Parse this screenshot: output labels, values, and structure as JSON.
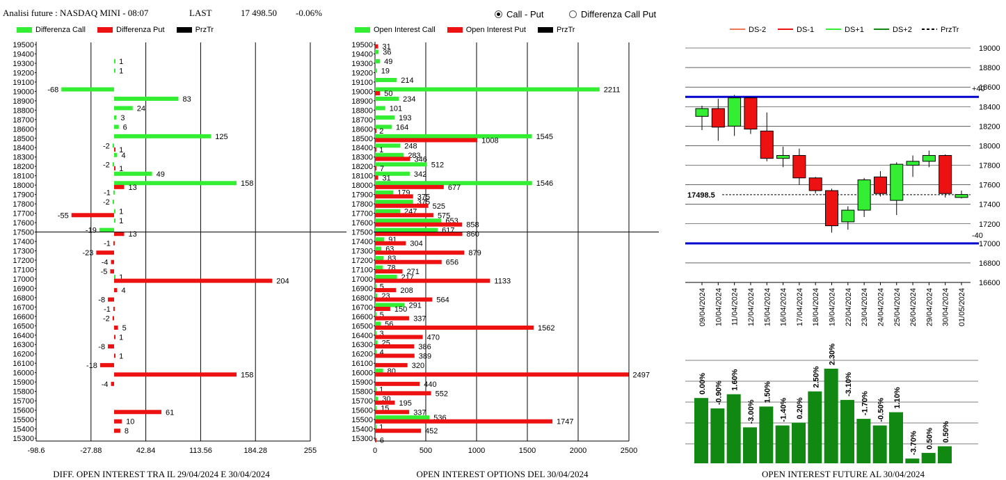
{
  "header": {
    "title": "Analisi future : NASDAQ MINI - 08:07",
    "last_label": "LAST",
    "last_value": "17 498.50",
    "change": "-0.06%"
  },
  "radio": {
    "options": [
      {
        "label": "Call - Put",
        "checked": true
      },
      {
        "label": "Differenza Call Put",
        "checked": false
      }
    ]
  },
  "colors": {
    "green": "#33ee33",
    "red": "#ee1111",
    "dark_green": "#118811",
    "blue": "#0000cc"
  },
  "chart_data": [
    {
      "type": "bar",
      "orientation": "horizontal",
      "caption": "DIFF. OPEN INTEREST TRA IL 29/04/2024 E 30/04/2024",
      "legend": [
        "Differenza Call",
        "Differenza Put",
        "PrzTr"
      ],
      "xticks": [
        "-98.6",
        "-27.88",
        "42.84",
        "113.56",
        "184.28",
        "255"
      ],
      "xlim": [
        -98.6,
        255
      ],
      "strikes": [
        19500,
        19400,
        19300,
        19200,
        19100,
        19000,
        18900,
        18800,
        18700,
        18600,
        18500,
        18400,
        18300,
        18200,
        18100,
        18000,
        17900,
        17800,
        17700,
        17600,
        17500,
        17400,
        17300,
        17200,
        17100,
        17000,
        16900,
        16800,
        16700,
        16600,
        16500,
        16400,
        16300,
        16200,
        16100,
        16000,
        15900,
        15800,
        15700,
        15600,
        15500,
        15400,
        15300
      ],
      "call": [
        null,
        null,
        1,
        1,
        null,
        -68,
        83,
        24,
        3,
        6,
        125,
        -2,
        4,
        -2,
        49,
        158,
        -1,
        -2,
        1,
        1,
        -19,
        null,
        null,
        null,
        null,
        1,
        null,
        null,
        null,
        null,
        null,
        null,
        null,
        null,
        null,
        null,
        null,
        null,
        null,
        null,
        null,
        null,
        null
      ],
      "put": [
        null,
        null,
        null,
        null,
        null,
        null,
        null,
        null,
        null,
        null,
        null,
        1,
        null,
        1,
        null,
        13,
        null,
        null,
        -55,
        null,
        13,
        -1,
        -23,
        -4,
        -5,
        204,
        4,
        -8,
        -1,
        -2,
        5,
        1,
        -8,
        1,
        -18,
        158,
        -4,
        null,
        null,
        61,
        10,
        8,
        null
      ],
      "prztr": 17500
    },
    {
      "type": "bar",
      "orientation": "horizontal",
      "caption": "OPEN INTEREST OPTIONS DEL 30/04/2024",
      "legend": [
        "Open Interest Call",
        "Open Interest Put",
        "PrzTr"
      ],
      "xticks": [
        "0",
        "500",
        "1000",
        "1500",
        "2000",
        "2500"
      ],
      "xlim": [
        0,
        2500
      ],
      "strikes": [
        19500,
        19400,
        19300,
        19200,
        19100,
        19000,
        18900,
        18800,
        18700,
        18600,
        18500,
        18400,
        18300,
        18200,
        18100,
        18000,
        17900,
        17800,
        17700,
        17600,
        17500,
        17400,
        17300,
        17200,
        17100,
        17000,
        16900,
        16800,
        16700,
        16600,
        16500,
        16400,
        16300,
        16200,
        16100,
        16000,
        15900,
        15800,
        15700,
        15600,
        15500,
        15400,
        15300
      ],
      "call": [
        null,
        36,
        49,
        19,
        214,
        2211,
        234,
        101,
        193,
        164,
        1545,
        248,
        283,
        512,
        342,
        1546,
        179,
        375,
        247,
        653,
        617,
        91,
        63,
        83,
        78,
        217,
        5,
        23,
        291,
        5,
        56,
        3,
        25,
        4,
        null,
        80,
        null,
        1,
        30,
        15,
        536,
        1,
        null
      ],
      "put": [
        31,
        null,
        null,
        null,
        null,
        50,
        null,
        null,
        null,
        2,
        1008,
        1,
        346,
        7,
        31,
        677,
        375,
        525,
        575,
        858,
        860,
        304,
        879,
        656,
        271,
        1133,
        208,
        564,
        150,
        337,
        1562,
        470,
        386,
        389,
        320,
        2497,
        440,
        552,
        195,
        337,
        1747,
        452,
        6
      ],
      "prztr": 17500
    },
    {
      "type": "candlestick",
      "legend": [
        "DS-2",
        "DS-1",
        "DS+1",
        "DS+2",
        "PrzTr"
      ],
      "yticks": [
        "19000",
        "18800",
        "18600",
        "18400",
        "18200",
        "18000",
        "17800",
        "17600",
        "17400",
        "17200",
        "17000",
        "16800",
        "16600"
      ],
      "ylim": [
        16600,
        19000
      ],
      "dates": [
        "09/04/2024",
        "10/04/2024",
        "11/04/2024",
        "12/04/2024",
        "15/04/2024",
        "16/04/2024",
        "17/04/2024",
        "18/04/2024",
        "19/04/2024",
        "22/04/2024",
        "23/04/2024",
        "24/04/2024",
        "25/04/2024",
        "26/04/2024",
        "29/04/2024",
        "30/04/2024",
        "01/05/2024"
      ],
      "candles": [
        {
          "o": 18300,
          "h": 18410,
          "l": 18160,
          "c": 18380
        },
        {
          "o": 18380,
          "h": 18480,
          "l": 18050,
          "c": 18190
        },
        {
          "o": 18200,
          "h": 18520,
          "l": 18100,
          "c": 18490
        },
        {
          "o": 18490,
          "h": 18500,
          "l": 18120,
          "c": 18170
        },
        {
          "o": 18150,
          "h": 18340,
          "l": 17840,
          "c": 17870
        },
        {
          "o": 17870,
          "h": 17990,
          "l": 17780,
          "c": 17900
        },
        {
          "o": 17900,
          "h": 17970,
          "l": 17600,
          "c": 17670
        },
        {
          "o": 17670,
          "h": 17680,
          "l": 17510,
          "c": 17540
        },
        {
          "o": 17540,
          "h": 17560,
          "l": 17110,
          "c": 17180
        },
        {
          "o": 17220,
          "h": 17380,
          "l": 17140,
          "c": 17340
        },
        {
          "o": 17340,
          "h": 17670,
          "l": 17270,
          "c": 17650
        },
        {
          "o": 17680,
          "h": 17740,
          "l": 17480,
          "c": 17510
        },
        {
          "o": 17440,
          "h": 17830,
          "l": 17290,
          "c": 17810
        },
        {
          "o": 17800,
          "h": 17900,
          "l": 17680,
          "c": 17840
        },
        {
          "o": 17840,
          "h": 17950,
          "l": 17780,
          "c": 17900
        },
        {
          "o": 17900,
          "h": 17910,
          "l": 17470,
          "c": 17510
        },
        {
          "o": 17470,
          "h": 17540,
          "l": 17460,
          "c": 17500
        }
      ],
      "upper_level": 18500,
      "lower_level": 17000,
      "upper_label": "+40",
      "lower_label": "-40",
      "price_label": "17498.5",
      "price": 17498.5
    },
    {
      "type": "bar",
      "caption": "OPEN INTEREST FUTURE AL 30/04/2024",
      "labels": [
        "0.00%",
        "-0.90%",
        "1.60%",
        "-3.00%",
        "1.50%",
        "-1.40%",
        "0.20%",
        "2.50%",
        "2.30%",
        "-3.10%",
        "-1.70%",
        "-0.50%",
        "1.10%",
        "-3.70%",
        "0.50%",
        "0.50%"
      ],
      "heights": [
        0.69,
        0.58,
        0.73,
        0.38,
        0.6,
        0.4,
        0.43,
        0.76,
        1.0,
        0.67,
        0.47,
        0.4,
        0.54,
        0.05,
        0.11,
        0.18
      ]
    }
  ]
}
